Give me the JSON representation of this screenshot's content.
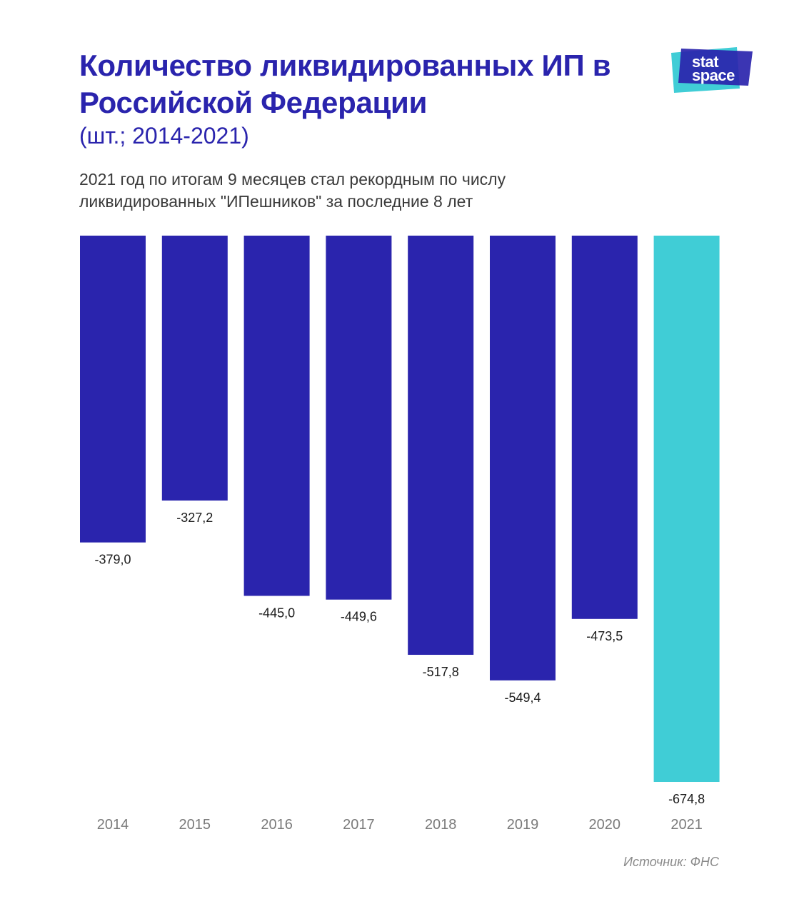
{
  "header": {
    "title": "Количество ликвидированных ИП в Российской Федерации",
    "title_unit": "(шт.; 2014-2021)",
    "subtitle": "2021 год по итогам 9 месяцев стал рекордным по числу ликвидированных \"ИПешников\" за последние 8 лет"
  },
  "logo": {
    "line1": "stat",
    "line2": "space"
  },
  "source": "Источник: ФНС",
  "colors": {
    "primary": "#2a24ad",
    "highlight": "#40cdd6",
    "text": "#3a3a3a",
    "axis_text": "#7a7a7a"
  },
  "chart_data": {
    "type": "bar",
    "categories": [
      "2014",
      "2015",
      "2016",
      "2017",
      "2018",
      "2019",
      "2020",
      "2021"
    ],
    "values": [
      -379.0,
      -327.2,
      -445.0,
      -449.6,
      -517.8,
      -549.4,
      -473.5,
      -674.8
    ],
    "value_labels": [
      "-379,0",
      "-327,2",
      "-445,0",
      "-449,6",
      "-517,8",
      "-549,4",
      "-473,5",
      "-674,8"
    ],
    "highlight_category": "2021",
    "title": "Количество ликвидированных ИП в Российской Федерации",
    "xlabel": "",
    "ylabel": "",
    "grid": false,
    "legend": "none"
  }
}
